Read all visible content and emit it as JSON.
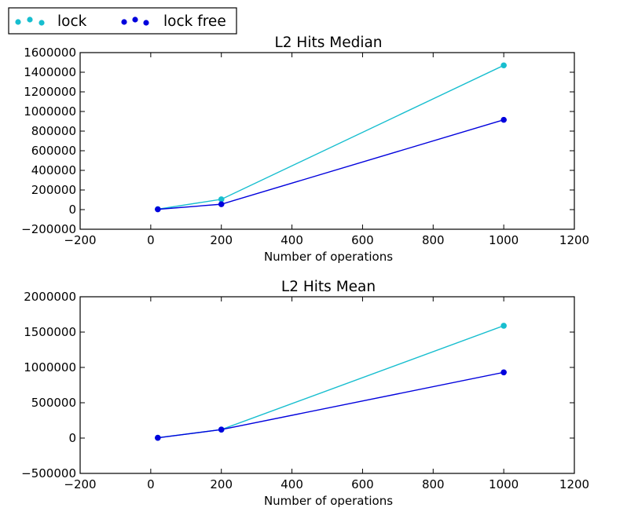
{
  "legend": {
    "placement": "top-left, outside plot area",
    "entries": [
      {
        "label": "lock",
        "color": "#17becf"
      },
      {
        "label": "lock free",
        "color": "#0000dd"
      }
    ]
  },
  "chart_data": [
    {
      "type": "line",
      "title": "L2 Hits Median",
      "xlabel": "Number of operations",
      "ylabel": "",
      "xlim": [
        -200,
        1200
      ],
      "ylim": [
        -200000,
        1600000
      ],
      "xticks": [
        -200,
        0,
        200,
        400,
        600,
        800,
        1000,
        1200
      ],
      "yticks": [
        -200000,
        0,
        200000,
        400000,
        600000,
        800000,
        1000000,
        1200000,
        1400000,
        1600000
      ],
      "x_tick_labels": [
        "−200",
        "0",
        "200",
        "400",
        "600",
        "800",
        "1000",
        "1200"
      ],
      "y_tick_labels": [
        "−200000",
        "0",
        "200000",
        "400000",
        "600000",
        "800000",
        "1000000",
        "1200000",
        "1400000",
        "1600000"
      ],
      "grid": false,
      "series": [
        {
          "name": "lock",
          "color": "#17becf",
          "x": [
            20,
            200,
            1000
          ],
          "values": [
            5000,
            105000,
            1470000
          ]
        },
        {
          "name": "lock free",
          "color": "#0000dd",
          "x": [
            20,
            200,
            1000
          ],
          "values": [
            3000,
            55000,
            915000
          ]
        }
      ]
    },
    {
      "type": "line",
      "title": "L2 Hits Mean",
      "xlabel": "Number of operations",
      "ylabel": "",
      "xlim": [
        -200,
        1200
      ],
      "ylim": [
        -500000,
        2000000
      ],
      "xticks": [
        -200,
        0,
        200,
        400,
        600,
        800,
        1000,
        1200
      ],
      "yticks": [
        -500000,
        0,
        500000,
        1000000,
        1500000,
        2000000
      ],
      "x_tick_labels": [
        "−200",
        "0",
        "200",
        "400",
        "600",
        "800",
        "1000",
        "1200"
      ],
      "y_tick_labels": [
        "−500000",
        "0",
        "500000",
        "1000000",
        "1500000",
        "2000000"
      ],
      "grid": false,
      "series": [
        {
          "name": "lock",
          "color": "#17becf",
          "x": [
            20,
            200,
            1000
          ],
          "values": [
            5000,
            120000,
            1590000
          ]
        },
        {
          "name": "lock free",
          "color": "#0000dd",
          "x": [
            20,
            200,
            1000
          ],
          "values": [
            3000,
            120000,
            930000
          ]
        }
      ]
    }
  ]
}
